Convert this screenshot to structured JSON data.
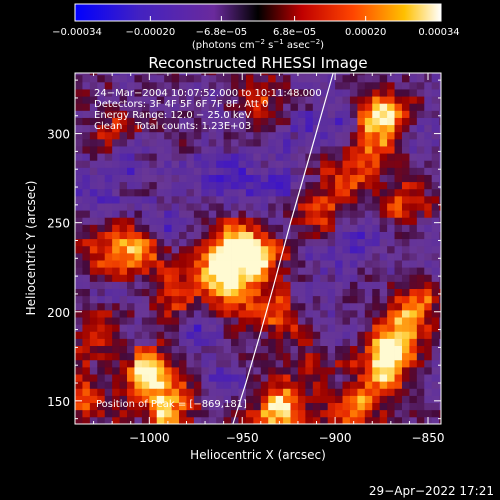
{
  "chart_data": {
    "type": "heatmap",
    "title": "Reconstructed RHESSI Image",
    "xlabel": "Heliocentric X (arcsec)",
    "ylabel": "Heliocentric Y (arcsec)",
    "xlim": [
      -1040,
      -843
    ],
    "ylim": [
      137,
      334
    ],
    "x_ticks": [
      -1000,
      -950,
      -900,
      -850
    ],
    "x_tick_labels": [
      "−1000",
      "−950",
      "−900",
      "−850"
    ],
    "y_ticks": [
      150,
      200,
      250,
      300
    ],
    "y_tick_labels": [
      "150",
      "200",
      "250",
      "300"
    ],
    "colorbar": {
      "min": -0.00034,
      "max": 0.00034,
      "ticks": [
        -0.00034,
        -0.0002,
        -6.8e-05,
        6.8e-05,
        0.0002,
        0.00034
      ],
      "tick_labels": [
        "−0.00034",
        "−0.00020",
        "−6.8e−05",
        "6.8e−05",
        "0.00020",
        "0.00034"
      ],
      "units_text": "(photons cm",
      "units_exp1": "−2",
      "units_mid": " s",
      "units_exp2": "−1",
      "units_end": " asec",
      "units_exp3": "−2",
      "units_close": ")"
    },
    "info_lines": [
      "24−Mar−2004 10:07:52.000 to 10:11:48.000",
      "Detectors: 3F 4F 5F 6F 7F 8F, Att 0",
      "Energy Range: 12.0 − 25.0 keV",
      "Clean    Total counts: 1.23E+03"
    ],
    "peak_label": "Position of Peak = [−869,181]",
    "peak": [
      -869,
      181
    ],
    "limb_curve": [
      [
        -955,
        137
      ],
      [
        -948,
        160
      ],
      [
        -941,
        185
      ],
      [
        -933,
        215
      ],
      [
        -924,
        250
      ],
      [
        -913,
        290
      ],
      [
        -901,
        334
      ]
    ],
    "hot_spots": [
      [
        -1000,
        165,
        0.9
      ],
      [
        -990,
        145,
        0.7
      ],
      [
        -1005,
        235,
        0.6
      ],
      [
        -985,
        210,
        0.6
      ],
      [
        -963,
        225,
        0.8
      ],
      [
        -952,
        238,
        0.6
      ],
      [
        -942,
        230,
        0.6
      ],
      [
        -955,
        210,
        0.5
      ],
      [
        -1028,
        185,
        0.5
      ],
      [
        -1025,
        235,
        0.5
      ],
      [
        -930,
        198,
        0.5
      ],
      [
        -868,
        183,
        1.0
      ],
      [
        -855,
        205,
        0.6
      ],
      [
        -875,
        165,
        0.7
      ],
      [
        -890,
        145,
        0.6
      ],
      [
        -930,
        145,
        0.9
      ],
      [
        -912,
        170,
        0.4
      ],
      [
        -862,
        262,
        0.5
      ],
      [
        -875,
        312,
        0.9
      ],
      [
        -895,
        275,
        0.5
      ],
      [
        -910,
        255,
        0.4
      ],
      [
        -1020,
        305,
        0.4
      ],
      [
        -940,
        318,
        0.4
      ],
      [
        -880,
        290,
        0.5
      ],
      [
        -1032,
        150,
        0.5
      ]
    ],
    "cold_spots": [
      [
        -990,
        250,
        0.7
      ],
      [
        -955,
        275,
        0.6
      ],
      [
        -975,
        195,
        0.6
      ],
      [
        -930,
        270,
        0.5
      ],
      [
        -1010,
        280,
        0.5
      ],
      [
        -905,
        225,
        0.5
      ],
      [
        -895,
        310,
        0.5
      ],
      [
        -855,
        300,
        0.4
      ],
      [
        -960,
        160,
        0.4
      ],
      [
        -920,
        300,
        0.4
      ],
      [
        -1030,
        265,
        0.4
      ],
      [
        -885,
        240,
        0.4
      ]
    ],
    "grid": false,
    "legend": "none"
  },
  "footer": {
    "date": "29−Apr−2022 17:21"
  },
  "colors": {
    "background": "#000000",
    "axes": "#ffffff",
    "limb": "#ffffff"
  }
}
